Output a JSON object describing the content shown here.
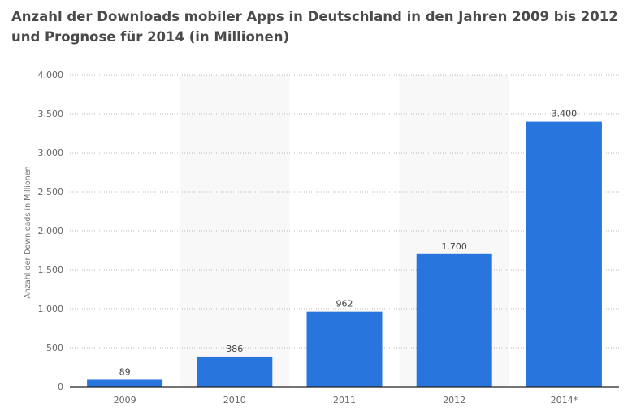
{
  "chart_data": {
    "type": "bar",
    "title": "Anzahl der Downloads mobiler Apps in Deutschland in den Jahren 2009 bis 2012 und Prognose für 2014 (in Millionen)",
    "xlabel": "",
    "ylabel": "Anzahl der Downloads in Millionen",
    "categories": [
      "2009",
      "2010",
      "2011",
      "2012",
      "2014*"
    ],
    "values": [
      89,
      386,
      962,
      1700,
      3400
    ],
    "value_labels": [
      "89",
      "386",
      "962",
      "1.700",
      "3.400"
    ],
    "ylim": [
      0,
      4000
    ],
    "yticks": [
      0,
      500,
      1000,
      1500,
      2000,
      2500,
      3000,
      3500,
      4000
    ],
    "ytick_labels": [
      "0",
      "500",
      "1.000",
      "1.500",
      "2.000",
      "2.500",
      "3.000",
      "3.500",
      "4.000"
    ],
    "grid": true,
    "bar_color": "#2876dd",
    "band_color": "#f8f8f8"
  }
}
